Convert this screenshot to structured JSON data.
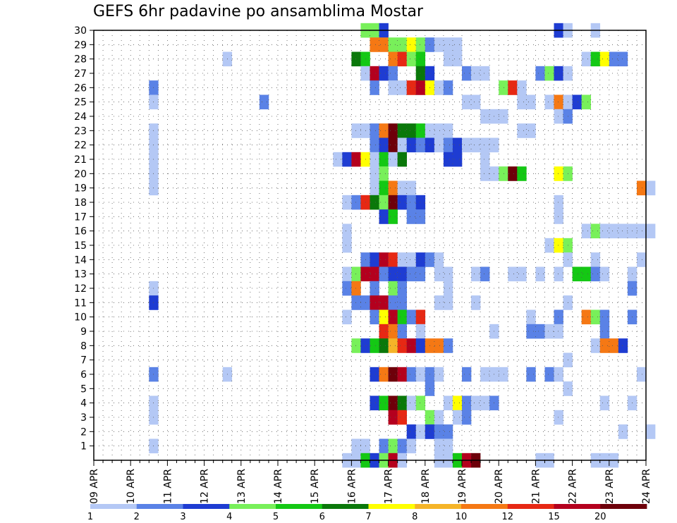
{
  "chart_data": {
    "type": "heatmap",
    "title": "GEFS 6hr padavine po ansamblima Mostar",
    "y_ticks": [
      "1",
      "2",
      "3",
      "4",
      "5",
      "6",
      "7",
      "8",
      "9",
      "10",
      "11",
      "12",
      "13",
      "14",
      "15",
      "16",
      "17",
      "18",
      "19",
      "20",
      "21",
      "22",
      "23",
      "24",
      "25",
      "26",
      "27",
      "28",
      "29",
      "30"
    ],
    "x_ticks": [
      "09 APR",
      "10 APR",
      "11 APR",
      "12 APR",
      "13 APR",
      "14 APR",
      "15 APR",
      "16 APR",
      "17 APR",
      "18 APR",
      "19 APR",
      "20 APR",
      "21 APR",
      "22 APR",
      "23 APR",
      "24 APR"
    ],
    "x_unit": "6h step (4 per day, starting 09 APR 00Z)",
    "grid": true,
    "legend": {
      "position": "bottom",
      "labels": [
        "1",
        "2",
        "3",
        "4",
        "5",
        "6",
        "7",
        "8",
        "10",
        "12",
        "15",
        "20"
      ],
      "colors": [
        "#b4c8f5",
        "#5a82e6",
        "#1e3cd2",
        "#78f05a",
        "#14c814",
        "#0a780a",
        "#ffff00",
        "#f5b428",
        "#f57814",
        "#e62814",
        "#b4001e",
        "#6e000a"
      ]
    },
    "cells": [
      [
        30,
        29,
        4
      ],
      [
        30,
        30,
        4
      ],
      [
        30,
        31,
        3
      ],
      [
        30,
        50,
        3
      ],
      [
        30,
        51,
        1
      ],
      [
        30,
        54,
        1
      ],
      [
        29,
        30,
        10
      ],
      [
        29,
        31,
        10
      ],
      [
        29,
        32,
        4
      ],
      [
        29,
        33,
        4
      ],
      [
        29,
        34,
        7
      ],
      [
        29,
        35,
        4
      ],
      [
        29,
        36,
        2
      ],
      [
        29,
        37,
        1
      ],
      [
        29,
        38,
        1
      ],
      [
        29,
        39,
        1
      ],
      [
        28,
        14,
        1
      ],
      [
        28,
        28,
        6
      ],
      [
        28,
        29,
        5
      ],
      [
        28,
        32,
        10
      ],
      [
        28,
        33,
        12
      ],
      [
        28,
        34,
        4
      ],
      [
        28,
        35,
        5
      ],
      [
        28,
        38,
        1
      ],
      [
        28,
        39,
        1
      ],
      [
        28,
        53,
        1
      ],
      [
        28,
        54,
        5
      ],
      [
        28,
        55,
        7
      ],
      [
        28,
        56,
        2
      ],
      [
        28,
        57,
        2
      ],
      [
        27,
        29,
        1
      ],
      [
        27,
        30,
        15
      ],
      [
        27,
        31,
        3
      ],
      [
        27,
        32,
        2
      ],
      [
        27,
        35,
        6
      ],
      [
        27,
        36,
        3
      ],
      [
        27,
        40,
        2
      ],
      [
        27,
        41,
        1
      ],
      [
        27,
        42,
        1
      ],
      [
        27,
        48,
        2
      ],
      [
        27,
        49,
        4
      ],
      [
        27,
        50,
        3
      ],
      [
        27,
        51,
        1
      ],
      [
        26,
        6,
        2
      ],
      [
        26,
        30,
        2
      ],
      [
        26,
        32,
        1
      ],
      [
        26,
        33,
        1
      ],
      [
        26,
        34,
        12
      ],
      [
        26,
        35,
        15
      ],
      [
        26,
        36,
        7
      ],
      [
        26,
        37,
        1
      ],
      [
        26,
        38,
        2
      ],
      [
        26,
        44,
        4
      ],
      [
        26,
        45,
        12
      ],
      [
        26,
        46,
        1
      ],
      [
        25,
        6,
        1
      ],
      [
        25,
        18,
        2
      ],
      [
        25,
        40,
        1
      ],
      [
        25,
        41,
        1
      ],
      [
        25,
        46,
        1
      ],
      [
        25,
        47,
        1
      ],
      [
        25,
        49,
        1
      ],
      [
        25,
        50,
        10
      ],
      [
        25,
        51,
        1
      ],
      [
        25,
        52,
        3
      ],
      [
        25,
        53,
        4
      ],
      [
        24,
        42,
        1
      ],
      [
        24,
        43,
        1
      ],
      [
        24,
        44,
        1
      ],
      [
        24,
        50,
        1
      ],
      [
        24,
        51,
        2
      ],
      [
        23,
        6,
        1
      ],
      [
        23,
        28,
        1
      ],
      [
        23,
        29,
        1
      ],
      [
        23,
        30,
        2
      ],
      [
        23,
        31,
        10
      ],
      [
        23,
        32,
        20
      ],
      [
        23,
        33,
        6
      ],
      [
        23,
        34,
        6
      ],
      [
        23,
        35,
        5
      ],
      [
        23,
        36,
        1
      ],
      [
        23,
        37,
        1
      ],
      [
        23,
        38,
        1
      ],
      [
        23,
        46,
        1
      ],
      [
        23,
        47,
        1
      ],
      [
        22,
        6,
        1
      ],
      [
        22,
        30,
        2
      ],
      [
        22,
        31,
        3
      ],
      [
        22,
        32,
        20
      ],
      [
        22,
        33,
        1
      ],
      [
        22,
        34,
        3
      ],
      [
        22,
        35,
        2
      ],
      [
        22,
        36,
        3
      ],
      [
        22,
        37,
        1
      ],
      [
        22,
        38,
        2
      ],
      [
        22,
        39,
        3
      ],
      [
        22,
        40,
        1
      ],
      [
        22,
        41,
        1
      ],
      [
        22,
        42,
        1
      ],
      [
        22,
        43,
        1
      ],
      [
        21,
        6,
        1
      ],
      [
        21,
        26,
        1
      ],
      [
        21,
        27,
        3
      ],
      [
        21,
        28,
        15
      ],
      [
        21,
        29,
        7
      ],
      [
        21,
        30,
        1
      ],
      [
        21,
        31,
        5
      ],
      [
        21,
        32,
        1
      ],
      [
        21,
        33,
        6
      ],
      [
        21,
        38,
        3
      ],
      [
        21,
        39,
        3
      ],
      [
        21,
        42,
        1
      ],
      [
        20,
        6,
        1
      ],
      [
        20,
        30,
        1
      ],
      [
        20,
        31,
        4
      ],
      [
        20,
        42,
        1
      ],
      [
        20,
        43,
        1
      ],
      [
        20,
        44,
        4
      ],
      [
        20,
        45,
        20
      ],
      [
        20,
        46,
        5
      ],
      [
        20,
        50,
        7
      ],
      [
        20,
        51,
        4
      ],
      [
        19,
        6,
        1
      ],
      [
        19,
        30,
        1
      ],
      [
        19,
        31,
        5
      ],
      [
        19,
        32,
        10
      ],
      [
        19,
        33,
        1
      ],
      [
        19,
        34,
        1
      ],
      [
        19,
        59,
        10
      ],
      [
        19,
        60,
        1
      ],
      [
        18,
        27,
        1
      ],
      [
        18,
        28,
        2
      ],
      [
        18,
        29,
        12
      ],
      [
        18,
        30,
        6
      ],
      [
        18,
        31,
        4
      ],
      [
        18,
        32,
        20
      ],
      [
        18,
        33,
        3
      ],
      [
        18,
        34,
        2
      ],
      [
        18,
        35,
        3
      ],
      [
        18,
        50,
        1
      ],
      [
        17,
        31,
        3
      ],
      [
        17,
        32,
        5
      ],
      [
        17,
        34,
        2
      ],
      [
        17,
        35,
        2
      ],
      [
        17,
        50,
        1
      ],
      [
        16,
        27,
        1
      ],
      [
        16,
        53,
        1
      ],
      [
        16,
        54,
        4
      ],
      [
        16,
        55,
        1
      ],
      [
        16,
        56,
        1
      ],
      [
        16,
        57,
        1
      ],
      [
        16,
        58,
        1
      ],
      [
        16,
        59,
        1
      ],
      [
        16,
        60,
        1
      ],
      [
        15,
        27,
        1
      ],
      [
        15,
        49,
        1
      ],
      [
        15,
        50,
        7
      ],
      [
        15,
        51,
        4
      ],
      [
        14,
        29,
        2
      ],
      [
        14,
        30,
        3
      ],
      [
        14,
        31,
        15
      ],
      [
        14,
        32,
        12
      ],
      [
        14,
        33,
        1
      ],
      [
        14,
        34,
        1
      ],
      [
        14,
        35,
        3
      ],
      [
        14,
        36,
        2
      ],
      [
        14,
        37,
        1
      ],
      [
        14,
        51,
        1
      ],
      [
        14,
        54,
        1
      ],
      [
        14,
        59,
        1
      ],
      [
        13,
        27,
        1
      ],
      [
        13,
        28,
        4
      ],
      [
        13,
        29,
        15
      ],
      [
        13,
        30,
        15
      ],
      [
        13,
        31,
        2
      ],
      [
        13,
        32,
        3
      ],
      [
        13,
        33,
        3
      ],
      [
        13,
        34,
        2
      ],
      [
        13,
        35,
        2
      ],
      [
        13,
        37,
        1
      ],
      [
        13,
        38,
        1
      ],
      [
        13,
        41,
        1
      ],
      [
        13,
        42,
        2
      ],
      [
        13,
        45,
        1
      ],
      [
        13,
        46,
        1
      ],
      [
        13,
        48,
        1
      ],
      [
        13,
        50,
        1
      ],
      [
        13,
        52,
        5
      ],
      [
        13,
        53,
        5
      ],
      [
        13,
        54,
        2
      ],
      [
        13,
        55,
        1
      ],
      [
        13,
        58,
        1
      ],
      [
        12,
        6,
        1
      ],
      [
        12,
        27,
        2
      ],
      [
        12,
        28,
        10
      ],
      [
        12,
        30,
        2
      ],
      [
        12,
        32,
        4
      ],
      [
        12,
        33,
        2
      ],
      [
        12,
        38,
        1
      ],
      [
        12,
        58,
        2
      ],
      [
        11,
        6,
        3
      ],
      [
        11,
        28,
        2
      ],
      [
        11,
        29,
        2
      ],
      [
        11,
        30,
        15
      ],
      [
        11,
        31,
        15
      ],
      [
        11,
        32,
        2
      ],
      [
        11,
        33,
        2
      ],
      [
        11,
        37,
        1
      ],
      [
        11,
        38,
        1
      ],
      [
        11,
        41,
        1
      ],
      [
        11,
        51,
        1
      ],
      [
        10,
        27,
        1
      ],
      [
        10,
        30,
        2
      ],
      [
        10,
        31,
        7
      ],
      [
        10,
        32,
        15
      ],
      [
        10,
        33,
        5
      ],
      [
        10,
        34,
        2
      ],
      [
        10,
        35,
        12
      ],
      [
        10,
        47,
        1
      ],
      [
        10,
        50,
        2
      ],
      [
        10,
        53,
        10
      ],
      [
        10,
        54,
        4
      ],
      [
        10,
        55,
        2
      ],
      [
        10,
        58,
        2
      ],
      [
        9,
        31,
        12
      ],
      [
        9,
        32,
        10
      ],
      [
        9,
        33,
        2
      ],
      [
        9,
        35,
        1
      ],
      [
        9,
        43,
        1
      ],
      [
        9,
        47,
        2
      ],
      [
        9,
        48,
        2
      ],
      [
        9,
        49,
        1
      ],
      [
        9,
        50,
        1
      ],
      [
        9,
        55,
        2
      ],
      [
        8,
        28,
        4
      ],
      [
        8,
        29,
        3
      ],
      [
        8,
        30,
        5
      ],
      [
        8,
        31,
        6
      ],
      [
        8,
        32,
        8
      ],
      [
        8,
        33,
        12
      ],
      [
        8,
        34,
        15
      ],
      [
        8,
        35,
        3
      ],
      [
        8,
        36,
        10
      ],
      [
        8,
        37,
        10
      ],
      [
        8,
        38,
        2
      ],
      [
        8,
        54,
        1
      ],
      [
        8,
        55,
        10
      ],
      [
        8,
        56,
        10
      ],
      [
        8,
        57,
        3
      ],
      [
        7,
        51,
        1
      ],
      [
        6,
        6,
        2
      ],
      [
        6,
        14,
        1
      ],
      [
        6,
        30,
        3
      ],
      [
        6,
        31,
        10
      ],
      [
        6,
        32,
        20
      ],
      [
        6,
        33,
        15
      ],
      [
        6,
        34,
        2
      ],
      [
        6,
        35,
        1
      ],
      [
        6,
        36,
        2
      ],
      [
        6,
        37,
        1
      ],
      [
        6,
        40,
        2
      ],
      [
        6,
        42,
        1
      ],
      [
        6,
        43,
        1
      ],
      [
        6,
        44,
        1
      ],
      [
        6,
        47,
        2
      ],
      [
        6,
        49,
        2
      ],
      [
        6,
        50,
        1
      ],
      [
        6,
        59,
        1
      ],
      [
        5,
        36,
        2
      ],
      [
        5,
        51,
        1
      ],
      [
        4,
        6,
        1
      ],
      [
        4,
        30,
        3
      ],
      [
        4,
        31,
        5
      ],
      [
        4,
        32,
        20
      ],
      [
        4,
        33,
        6
      ],
      [
        4,
        34,
        1
      ],
      [
        4,
        35,
        4
      ],
      [
        4,
        38,
        1
      ],
      [
        4,
        39,
        7
      ],
      [
        4,
        40,
        2
      ],
      [
        4,
        41,
        1
      ],
      [
        4,
        42,
        1
      ],
      [
        4,
        43,
        2
      ],
      [
        4,
        55,
        1
      ],
      [
        4,
        58,
        1
      ],
      [
        3,
        6,
        1
      ],
      [
        3,
        32,
        15
      ],
      [
        3,
        33,
        12
      ],
      [
        3,
        36,
        4
      ],
      [
        3,
        37,
        1
      ],
      [
        3,
        39,
        1
      ],
      [
        3,
        40,
        2
      ],
      [
        3,
        50,
        1
      ],
      [
        2,
        34,
        3
      ],
      [
        2,
        35,
        1
      ],
      [
        2,
        36,
        3
      ],
      [
        2,
        37,
        2
      ],
      [
        2,
        38,
        2
      ],
      [
        2,
        57,
        1
      ],
      [
        2,
        60,
        1
      ],
      [
        1,
        6,
        1
      ],
      [
        1,
        28,
        1
      ],
      [
        1,
        29,
        1
      ],
      [
        1,
        31,
        2
      ],
      [
        1,
        32,
        4
      ],
      [
        1,
        33,
        2
      ],
      [
        1,
        34,
        1
      ],
      [
        1,
        37,
        1
      ],
      [
        1,
        38,
        1
      ],
      [
        0,
        27,
        1
      ],
      [
        0,
        28,
        1
      ],
      [
        0,
        29,
        5
      ],
      [
        0,
        30,
        3
      ],
      [
        0,
        31,
        4
      ],
      [
        0,
        32,
        15
      ],
      [
        0,
        33,
        1
      ],
      [
        0,
        37,
        1
      ],
      [
        0,
        38,
        1
      ],
      [
        0,
        39,
        5
      ],
      [
        0,
        40,
        15
      ],
      [
        0,
        41,
        20
      ],
      [
        0,
        48,
        1
      ],
      [
        0,
        49,
        1
      ],
      [
        0,
        54,
        1
      ],
      [
        0,
        55,
        1
      ],
      [
        0,
        56,
        1
      ]
    ]
  }
}
